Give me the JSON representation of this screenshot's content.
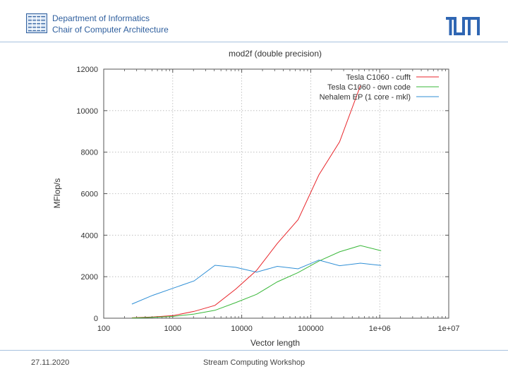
{
  "header": {
    "department": "Department of Informatics",
    "chair": "Chair of Computer Architecture",
    "logo_icon": "tum-logo-icon",
    "dept_icon": "department-grid-icon"
  },
  "footer": {
    "date": "27.11.2020",
    "title": "Stream Computing Workshop"
  },
  "chart_data": {
    "type": "line",
    "title": "mod2f (double precision)",
    "xlabel": "Vector length",
    "ylabel": "MFlop/s",
    "xscale": "log",
    "xlim": [
      100,
      10000000
    ],
    "ylim": [
      0,
      12000
    ],
    "grid": true,
    "legend_position": "top-right",
    "x_ticks": [
      {
        "value": 100,
        "label": "100"
      },
      {
        "value": 1000,
        "label": "1000"
      },
      {
        "value": 10000,
        "label": "10000"
      },
      {
        "value": 100000,
        "label": "100000"
      },
      {
        "value": 1000000,
        "label": "1e+06"
      },
      {
        "value": 10000000,
        "label": "1e+07"
      }
    ],
    "y_ticks": [
      {
        "value": 0,
        "label": "0"
      },
      {
        "value": 2000,
        "label": "2000"
      },
      {
        "value": 4000,
        "label": "4000"
      },
      {
        "value": 6000,
        "label": "6000"
      },
      {
        "value": 8000,
        "label": "8000"
      },
      {
        "value": 10000,
        "label": "10000"
      },
      {
        "value": 12000,
        "label": "12000"
      }
    ],
    "series": [
      {
        "name": "Tesla C1060 - cufft",
        "color": "#e8262b",
        "x": [
          256,
          512,
          1024,
          2048,
          4096,
          8192,
          16384,
          32768,
          65536,
          131072,
          262144,
          524288
        ],
        "y": [
          20,
          60,
          130,
          330,
          620,
          1400,
          2300,
          3600,
          4750,
          6900,
          8500,
          11200
        ]
      },
      {
        "name": "Tesla C1060 - own code",
        "color": "#3ab83a",
        "x": [
          256,
          512,
          1024,
          2048,
          4096,
          8192,
          16384,
          32768,
          65536,
          131072,
          262144,
          524288,
          1048576
        ],
        "y": [
          10,
          40,
          90,
          200,
          380,
          750,
          1150,
          1750,
          2200,
          2750,
          3200,
          3500,
          3250
        ]
      },
      {
        "name": "Nehalem EP (1 core - mkl)",
        "color": "#2f8fd6",
        "x": [
          256,
          512,
          1024,
          2048,
          4096,
          8192,
          16384,
          32768,
          65536,
          131072,
          262144,
          524288,
          1048576
        ],
        "y": [
          680,
          1100,
          1450,
          1800,
          2550,
          2450,
          2220,
          2500,
          2380,
          2800,
          2530,
          2650,
          2540
        ]
      }
    ]
  }
}
